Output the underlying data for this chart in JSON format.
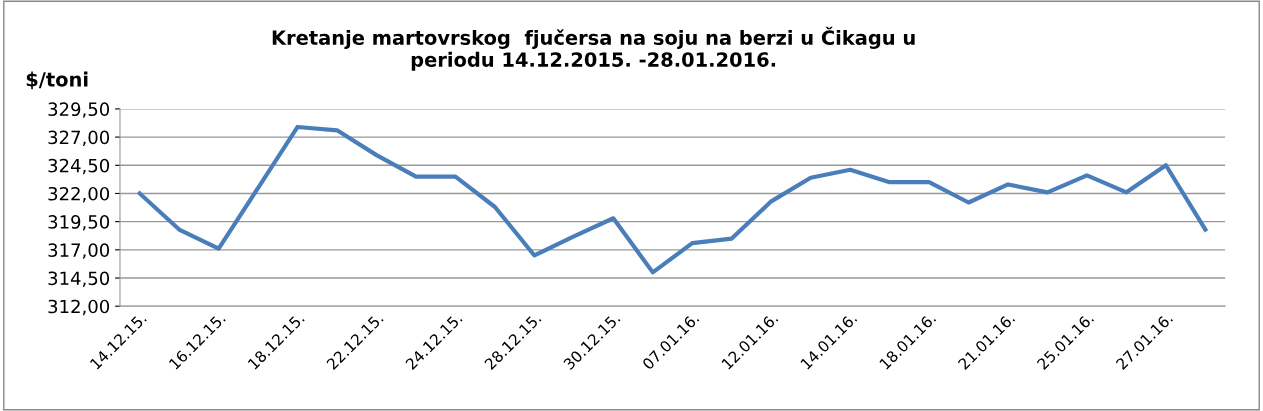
{
  "chart_data": {
    "type": "line",
    "title": "Kretanje martovrskog  fjučersa na soju na berzi u Čikagu u\nperiodu 14.12.2015. -28.01.2016.",
    "ylabel": "$/toni",
    "categories": [
      "14.12.15.",
      null,
      "16.12.15.",
      null,
      "18.12.15.",
      null,
      "22.12.15.",
      null,
      "24.12.15.",
      null,
      "28.12.15.",
      null,
      "30.12.15.",
      null,
      "07.01.16.",
      null,
      "12.01.16.",
      null,
      "14.01.16.",
      null,
      "18.01.16.",
      null,
      "21.01.16.",
      null,
      "25.01.16.",
      null,
      "27.01.16.",
      null
    ],
    "series": [
      {
        "color": "#4a7ebb",
        "values": [
          322.0,
          318.8,
          317.1,
          322.5,
          327.9,
          327.6,
          325.4,
          323.5,
          323.5,
          320.8,
          316.5,
          318.2,
          319.8,
          315.0,
          317.6,
          318.0,
          321.3,
          323.4,
          324.1,
          323.0,
          323.0,
          321.2,
          322.8,
          322.1,
          323.6,
          322.1,
          324.5,
          318.8
        ]
      }
    ],
    "ylim": [
      312,
      329.5
    ],
    "yticks": [
      {
        "value": 312,
        "label": "312,00"
      },
      {
        "value": 314.5,
        "label": "314,50"
      },
      {
        "value": 317,
        "label": "317,00"
      },
      {
        "value": 319.5,
        "label": "319,50"
      },
      {
        "value": 322,
        "label": "322,00"
      },
      {
        "value": 324.5,
        "label": "324,50"
      },
      {
        "value": 327,
        "label": "327,00"
      },
      {
        "value": 329.5,
        "label": "329,50"
      }
    ],
    "grid": "y",
    "marker": "none",
    "line_style": "solid"
  }
}
